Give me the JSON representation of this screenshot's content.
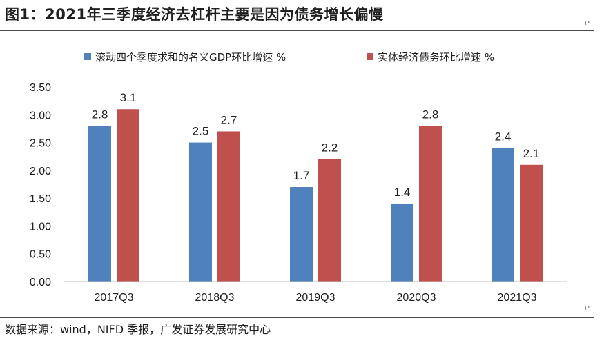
{
  "page": {
    "title": "图1：2021年三季度经济去杠杆主要是因为债务增长偏慢",
    "source": "数据来源：wind，NIFD 季报，广发证券发展研究中心",
    "return_mark": "↵"
  },
  "chart_data": {
    "type": "bar",
    "title": "",
    "xlabel": "",
    "ylabel": "",
    "categories": [
      "2017Q3",
      "2018Q3",
      "2019Q3",
      "2020Q3",
      "2021Q3"
    ],
    "series": [
      {
        "name": "滚动四个季度求和的名义GDP环比增速 %",
        "color": "#4F81BD",
        "values": [
          2.8,
          2.5,
          1.7,
          1.4,
          2.4
        ]
      },
      {
        "name": "实体经济债务环比增速 %",
        "color": "#C0504D",
        "values": [
          3.1,
          2.7,
          2.2,
          2.8,
          2.1
        ]
      }
    ],
    "ylim": [
      0,
      3.5
    ],
    "yticks": [
      "0.00",
      "0.50",
      "1.00",
      "1.50",
      "2.00",
      "2.50",
      "3.00",
      "3.50"
    ],
    "grid": false,
    "legend": "top-center",
    "data_labels": true
  }
}
